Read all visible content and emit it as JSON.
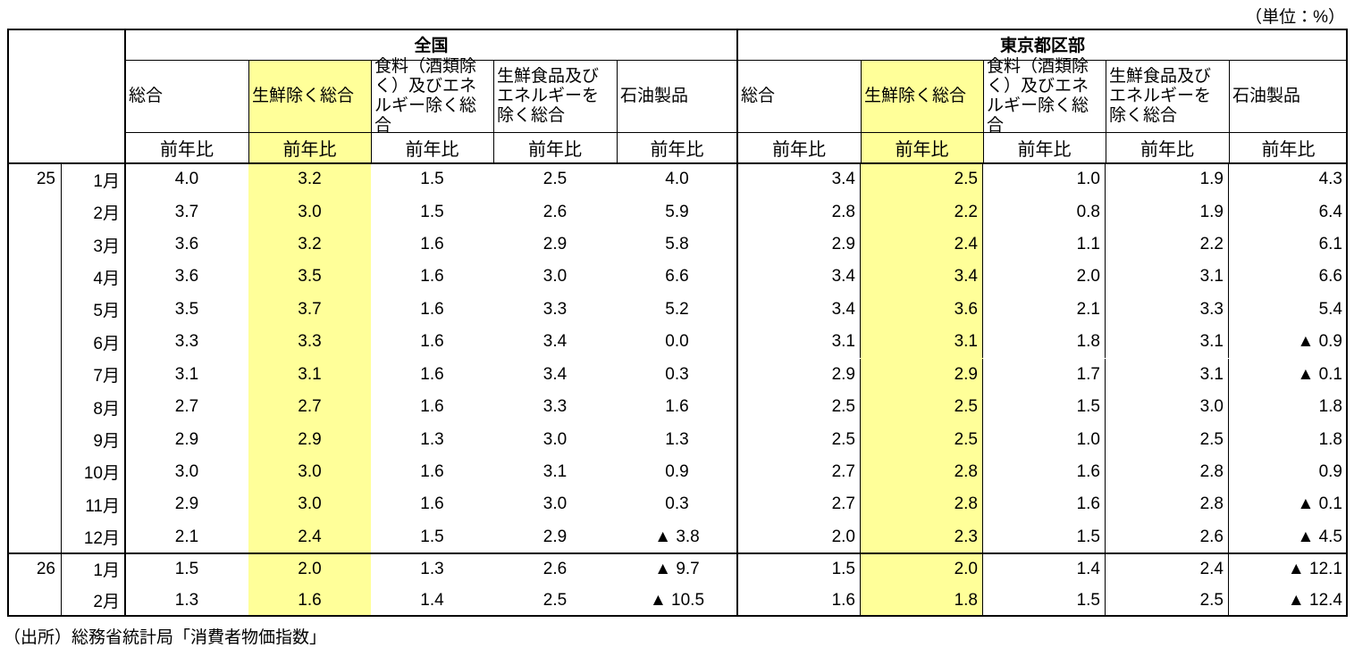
{
  "unit": "（単位：%）",
  "table": {
    "regions": [
      {
        "name": "全国",
        "columns": [
          {
            "name": "総合",
            "measure": "前年比"
          },
          {
            "name": "生鮮除く総合",
            "measure": "前年比"
          },
          {
            "name": "食料（酒類除く）及びエネルギー除く総合",
            "measure": "前年比"
          },
          {
            "name": "生鮮食品及びエネルギーを除く総合",
            "measure": "前年比"
          },
          {
            "name": "石油製品",
            "measure": "前年比"
          }
        ]
      },
      {
        "name": "東京都区部",
        "columns": [
          {
            "name": "総合",
            "measure": "前年比"
          },
          {
            "name": "生鮮除く総合",
            "measure": "前年比"
          },
          {
            "name": "食料（酒類除く）及びエネルギー除く総合",
            "measure": "前年比"
          },
          {
            "name": "生鮮食品及びエネルギーを除く総合",
            "measure": "前年比"
          },
          {
            "name": "石油製品",
            "measure": "前年比"
          }
        ]
      }
    ],
    "groups": [
      {
        "year": "25",
        "rows": [
          {
            "month": "1月",
            "values": [
              "4.0",
              "3.2",
              "1.5",
              "2.5",
              "4.0",
              "3.4",
              "2.5",
              "1.0",
              "1.9",
              "4.3"
            ]
          },
          {
            "month": "2月",
            "values": [
              "3.7",
              "3.0",
              "1.5",
              "2.6",
              "5.9",
              "2.8",
              "2.2",
              "0.8",
              "1.9",
              "6.4"
            ]
          },
          {
            "month": "3月",
            "values": [
              "3.6",
              "3.2",
              "1.6",
              "2.9",
              "5.8",
              "2.9",
              "2.4",
              "1.1",
              "2.2",
              "6.1"
            ]
          },
          {
            "month": "4月",
            "values": [
              "3.6",
              "3.5",
              "1.6",
              "3.0",
              "6.6",
              "3.4",
              "3.4",
              "2.0",
              "3.1",
              "6.6"
            ]
          },
          {
            "month": "5月",
            "values": [
              "3.5",
              "3.7",
              "1.6",
              "3.3",
              "5.2",
              "3.4",
              "3.6",
              "2.1",
              "3.3",
              "5.4"
            ]
          },
          {
            "month": "6月",
            "values": [
              "3.3",
              "3.3",
              "1.6",
              "3.4",
              "0.0",
              "3.1",
              "3.1",
              "1.8",
              "3.1",
              "▲ 0.9"
            ]
          },
          {
            "month": "7月",
            "values": [
              "3.1",
              "3.1",
              "1.6",
              "3.4",
              "0.3",
              "2.9",
              "2.9",
              "1.7",
              "3.1",
              "▲ 0.1"
            ]
          },
          {
            "month": "8月",
            "values": [
              "2.7",
              "2.7",
              "1.6",
              "3.3",
              "1.6",
              "2.5",
              "2.5",
              "1.5",
              "3.0",
              "1.8"
            ]
          },
          {
            "month": "9月",
            "values": [
              "2.9",
              "2.9",
              "1.3",
              "3.0",
              "1.3",
              "2.5",
              "2.5",
              "1.0",
              "2.5",
              "1.8"
            ]
          },
          {
            "month": "10月",
            "values": [
              "3.0",
              "3.0",
              "1.6",
              "3.1",
              "0.9",
              "2.7",
              "2.8",
              "1.6",
              "2.8",
              "0.9"
            ]
          },
          {
            "month": "11月",
            "values": [
              "2.9",
              "3.0",
              "1.6",
              "3.0",
              "0.3",
              "2.7",
              "2.8",
              "1.6",
              "2.8",
              "▲ 0.1"
            ]
          },
          {
            "month": "12月",
            "values": [
              "2.1",
              "2.4",
              "1.5",
              "2.9",
              "▲ 3.8",
              "2.0",
              "2.3",
              "1.5",
              "2.6",
              "▲ 4.5"
            ]
          }
        ]
      },
      {
        "year": "26",
        "rows": [
          {
            "month": "1月",
            "values": [
              "1.5",
              "2.0",
              "1.3",
              "2.6",
              "▲ 9.7",
              "1.5",
              "2.0",
              "1.4",
              "2.4",
              "▲ 12.1"
            ]
          },
          {
            "month": "2月",
            "values": [
              "1.3",
              "1.6",
              "1.4",
              "2.5",
              "▲ 10.5",
              "1.6",
              "1.8",
              "1.5",
              "2.5",
              "▲ 12.4"
            ]
          }
        ]
      }
    ]
  },
  "source": "（出所）総務省統計局「消費者物価指数」"
}
